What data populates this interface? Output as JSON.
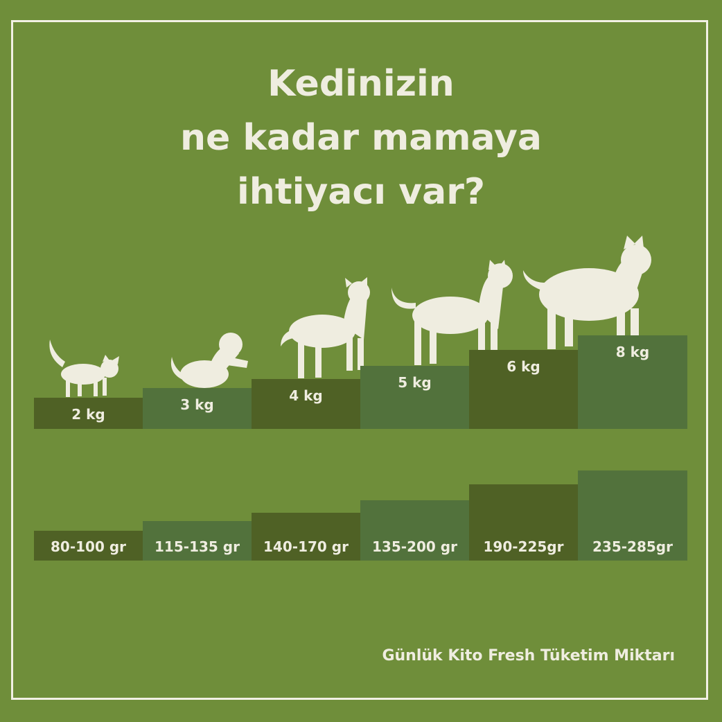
{
  "title_lines": [
    "Kedinizin",
    "ne kadar mamaya",
    "ihtiyacı var?"
  ],
  "footer": "Günlük Kito Fresh Tüketim Miktarı",
  "colors": {
    "background": "#6f8e3a",
    "bar_dark": "#4f6125",
    "bar_light": "#52723c",
    "text": "#efede0"
  },
  "chart_data": {
    "type": "bar",
    "title": "Kedinizin ne kadar mamaya ihtiyacı var?",
    "categories": [
      "2 kg",
      "3 kg",
      "4 kg",
      "5 kg",
      "6 kg",
      "8 kg"
    ],
    "weights_kg": [
      2,
      3,
      4,
      5,
      6,
      8
    ],
    "daily_amount_labels": [
      "80-100 gr",
      "115-135 gr",
      "140-170 gr",
      "135-200 gr",
      "190-225gr",
      "235-285gr"
    ],
    "series_label": "Günlük Kito Fresh Tüketim Miktarı"
  }
}
